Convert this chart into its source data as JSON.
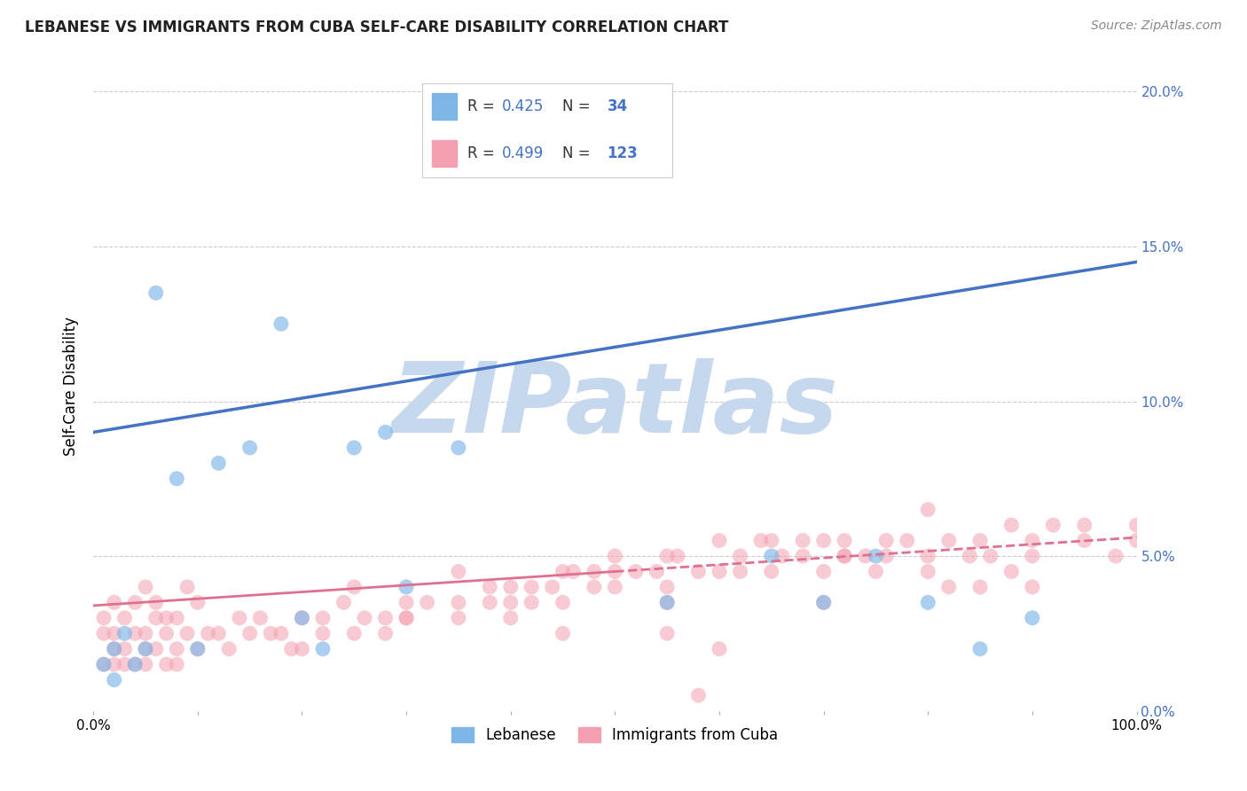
{
  "title": "LEBANESE VS IMMIGRANTS FROM CUBA SELF-CARE DISABILITY CORRELATION CHART",
  "source": "Source: ZipAtlas.com",
  "xlabel": "",
  "ylabel": "Self-Care Disability",
  "watermark": "ZIPatlas",
  "xlim": [
    0,
    100
  ],
  "ylim": [
    0,
    21
  ],
  "yticks": [
    0,
    5,
    10,
    15,
    20
  ],
  "legend_R1": "0.425",
  "legend_N1": "34",
  "legend_R2": "0.499",
  "legend_N2": "123",
  "legend_label1": "Lebanese",
  "legend_label2": "Immigrants from Cuba",
  "color_blue": "#7EB6E8",
  "color_pink": "#F4A0B0",
  "color_line_blue": "#4472C4",
  "color_line_pink": "#E07090",
  "color_accent": "#4472C4",
  "background": "#FFFFFF",
  "grid_color": "#CCCCCC",
  "title_color": "#222222",
  "watermark_color": "#C5D8EE",
  "blue_line_x0": 0,
  "blue_line_y0": 9.0,
  "blue_line_x1": 100,
  "blue_line_y1": 14.5,
  "pink_solid_x0": 0,
  "pink_solid_y0": 3.4,
  "pink_solid_x1": 50,
  "pink_solid_y1": 4.5,
  "pink_dash_x0": 50,
  "pink_dash_y0": 4.5,
  "pink_dash_x1": 100,
  "pink_dash_y1": 5.6,
  "scatter_blue_x": [
    1,
    2,
    2,
    3,
    4,
    5,
    6,
    8,
    10,
    12,
    15,
    18,
    20,
    22,
    25,
    28,
    30,
    35,
    55,
    65,
    70,
    75,
    80,
    85,
    90
  ],
  "scatter_blue_y": [
    1.5,
    2.0,
    1.0,
    2.5,
    1.5,
    2.0,
    13.5,
    7.5,
    2.0,
    8.0,
    8.5,
    12.5,
    3.0,
    2.0,
    8.5,
    9.0,
    4.0,
    8.5,
    3.5,
    5.0,
    3.5,
    5.0,
    3.5,
    2.0,
    3.0
  ],
  "scatter_pink_x": [
    1,
    1,
    1,
    2,
    2,
    2,
    2,
    3,
    3,
    3,
    4,
    4,
    4,
    5,
    5,
    5,
    5,
    6,
    6,
    6,
    7,
    7,
    7,
    8,
    8,
    8,
    9,
    9,
    10,
    10,
    11,
    12,
    13,
    14,
    15,
    16,
    17,
    18,
    19,
    20,
    20,
    22,
    22,
    24,
    25,
    26,
    28,
    28,
    30,
    30,
    32,
    35,
    35,
    38,
    40,
    40,
    42,
    44,
    45,
    45,
    46,
    48,
    50,
    50,
    52,
    54,
    55,
    55,
    56,
    58,
    60,
    60,
    62,
    64,
    65,
    65,
    66,
    68,
    70,
    70,
    72,
    72,
    74,
    76,
    78,
    80,
    80,
    82,
    84,
    85,
    86,
    88,
    88,
    90,
    90,
    92,
    95,
    95,
    98,
    100,
    100,
    60,
    58,
    35,
    40,
    55,
    25,
    70,
    75,
    80,
    85,
    90,
    45,
    50,
    30,
    48,
    62,
    68,
    72,
    76,
    82,
    55,
    38,
    42
  ],
  "scatter_pink_y": [
    2.5,
    1.5,
    3.0,
    2.0,
    3.5,
    1.5,
    2.5,
    2.0,
    3.0,
    1.5,
    2.5,
    1.5,
    3.5,
    2.5,
    4.0,
    2.0,
    1.5,
    3.0,
    2.0,
    3.5,
    2.5,
    1.5,
    3.0,
    2.0,
    3.0,
    1.5,
    2.5,
    4.0,
    2.0,
    3.5,
    2.5,
    2.5,
    2.0,
    3.0,
    2.5,
    3.0,
    2.5,
    2.5,
    2.0,
    3.0,
    2.0,
    3.0,
    2.5,
    3.5,
    2.5,
    3.0,
    3.0,
    2.5,
    3.5,
    3.0,
    3.5,
    3.0,
    4.5,
    4.0,
    4.0,
    3.0,
    4.0,
    4.0,
    4.5,
    3.5,
    4.5,
    4.5,
    4.0,
    5.0,
    4.5,
    4.5,
    4.0,
    5.0,
    5.0,
    4.5,
    5.5,
    4.5,
    5.0,
    5.5,
    5.5,
    4.5,
    5.0,
    5.5,
    5.5,
    4.5,
    5.0,
    5.5,
    5.0,
    5.0,
    5.5,
    4.5,
    6.5,
    5.5,
    5.0,
    5.5,
    5.0,
    6.0,
    4.5,
    5.5,
    4.0,
    6.0,
    6.0,
    5.5,
    5.0,
    6.0,
    5.5,
    2.0,
    0.5,
    3.5,
    3.5,
    2.5,
    4.0,
    3.5,
    4.5,
    5.0,
    4.0,
    5.0,
    2.5,
    4.5,
    3.0,
    4.0,
    4.5,
    5.0,
    5.0,
    5.5,
    4.0,
    3.5,
    3.5,
    3.5
  ],
  "fig_width": 14.06,
  "fig_height": 8.92,
  "dpi": 100
}
